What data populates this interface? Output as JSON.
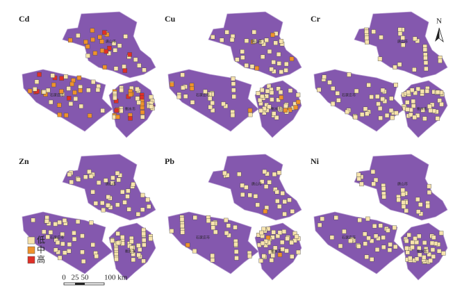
{
  "panels": [
    {
      "label": "Cd"
    },
    {
      "label": "Cu"
    },
    {
      "label": "Cr"
    },
    {
      "label": "Zn"
    },
    {
      "label": "Pb"
    },
    {
      "label": "Ni"
    }
  ],
  "cities": [
    "唐山市",
    "石家庄市",
    "衡水市"
  ],
  "legend": [
    {
      "label": "低",
      "color": "#f7e3ad"
    },
    {
      "label": "中",
      "color": "#ef922c"
    },
    {
      "label": "高",
      "color": "#df3027"
    }
  ],
  "scale_bar": {
    "labels": [
      "0",
      "25",
      "50",
      "100 km"
    ]
  },
  "north": "N"
}
